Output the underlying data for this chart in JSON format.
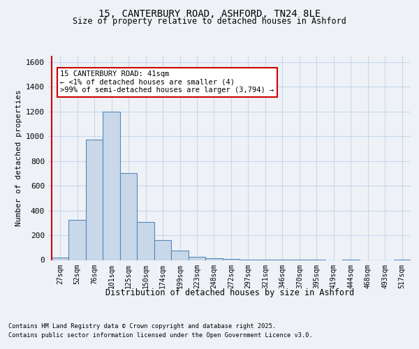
{
  "title_line1": "15, CANTERBURY ROAD, ASHFORD, TN24 8LE",
  "title_line2": "Size of property relative to detached houses in Ashford",
  "xlabel": "Distribution of detached houses by size in Ashford",
  "ylabel": "Number of detached properties",
  "categories": [
    "27sqm",
    "52sqm",
    "76sqm",
    "101sqm",
    "125sqm",
    "150sqm",
    "174sqm",
    "199sqm",
    "223sqm",
    "248sqm",
    "272sqm",
    "297sqm",
    "321sqm",
    "346sqm",
    "370sqm",
    "395sqm",
    "419sqm",
    "444sqm",
    "468sqm",
    "493sqm",
    "517sqm"
  ],
  "values": [
    20,
    325,
    975,
    1200,
    700,
    305,
    160,
    75,
    25,
    15,
    10,
    5,
    3,
    2,
    1,
    1,
    0,
    1,
    0,
    0,
    5
  ],
  "bar_color": "#c8d8e8",
  "bar_edge_color": "#5588bb",
  "annotation_text": "15 CANTERBURY ROAD: 41sqm\n← <1% of detached houses are smaller (4)\n>99% of semi-detached houses are larger (3,794) →",
  "annotation_box_color": "#ffffff",
  "annotation_box_edge": "#cc0000",
  "red_line_color": "#cc0000",
  "ylim": [
    0,
    1650
  ],
  "yticks": [
    0,
    200,
    400,
    600,
    800,
    1000,
    1200,
    1400,
    1600
  ],
  "grid_color": "#c8d8ea",
  "footer_line1": "Contains HM Land Registry data © Crown copyright and database right 2025.",
  "footer_line2": "Contains public sector information licensed under the Open Government Licence v3.0.",
  "bg_color": "#eef2f7"
}
